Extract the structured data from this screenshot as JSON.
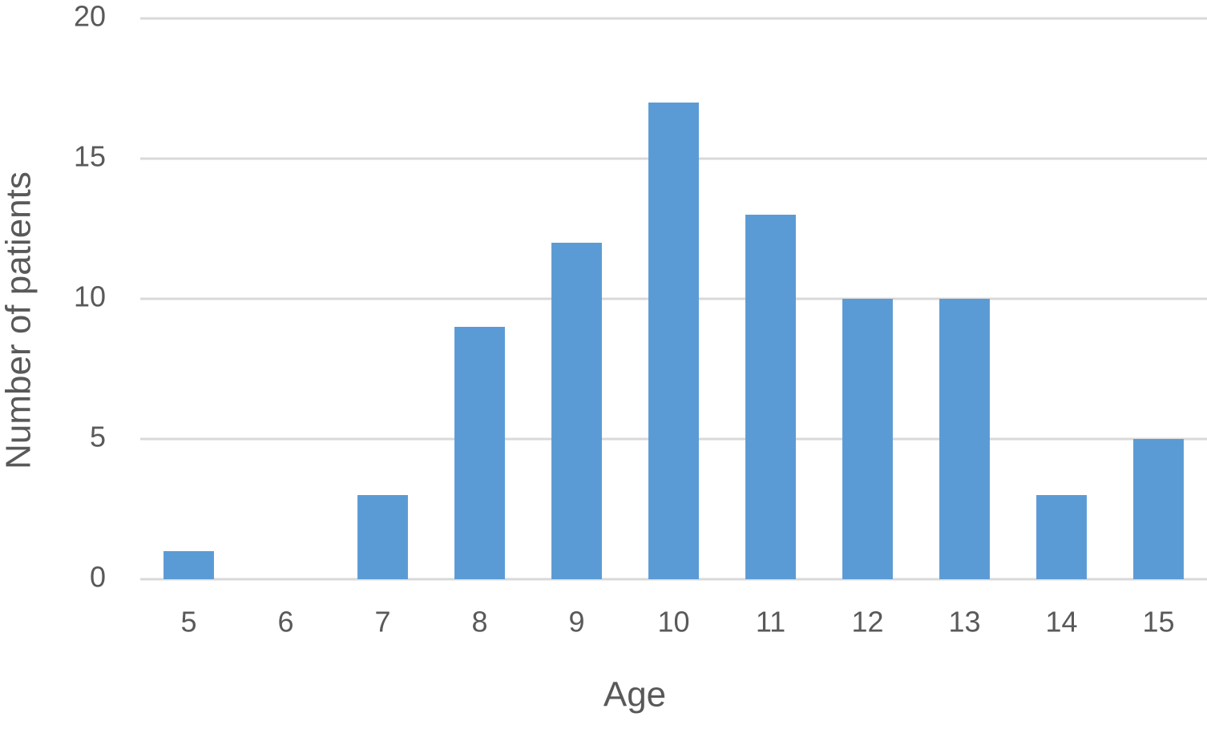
{
  "chart_data": {
    "type": "bar",
    "x_label": "Age",
    "y_label": "Number of patients",
    "categories": [
      "5",
      "6",
      "7",
      "8",
      "9",
      "10",
      "11",
      "12",
      "13",
      "14",
      "15"
    ],
    "values": [
      1,
      0,
      3,
      9,
      12,
      17,
      13,
      10,
      10,
      3,
      5
    ],
    "color": "#5b9bd5",
    "ylim": [
      0,
      20
    ],
    "yticks": [
      0,
      5,
      10,
      15,
      20
    ],
    "grid": true
  }
}
